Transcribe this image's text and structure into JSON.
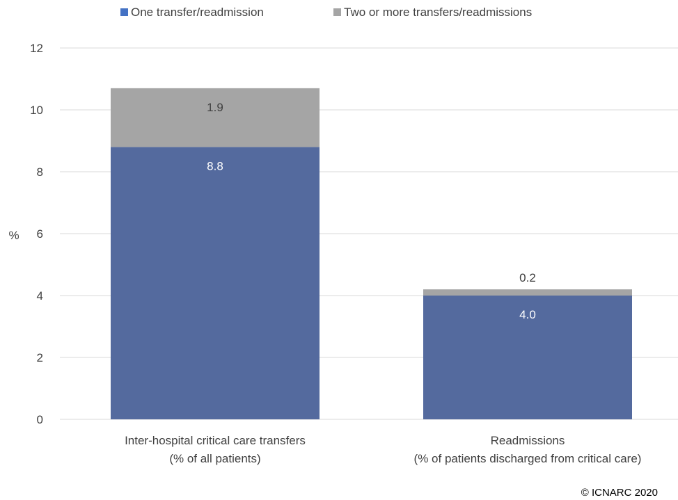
{
  "chart_data": {
    "type": "bar",
    "stacked": true,
    "categories": [
      [
        "Inter-hospital critical care transfers",
        "(% of all patients)"
      ],
      [
        "Readmissions",
        "(% of patients discharged from critical care)"
      ]
    ],
    "series": [
      {
        "name": "One transfer/readmission",
        "values": [
          8.8,
          4.0
        ],
        "labels": [
          "8.8",
          "4.0"
        ],
        "color": "#546a9e",
        "label_color": "#ffffff"
      },
      {
        "name": "Two or more transfers/readmissions",
        "values": [
          1.9,
          0.2
        ],
        "labels": [
          "1.9",
          "0.2"
        ],
        "color": "#a5a5a5",
        "label_color": "#404040"
      }
    ],
    "ylabel": "%",
    "ylim": [
      0,
      12
    ],
    "yticks": [
      0,
      2,
      4,
      6,
      8,
      10,
      12
    ],
    "grid": true,
    "legend_position": "top"
  },
  "credit": "© ICNARC 2020"
}
